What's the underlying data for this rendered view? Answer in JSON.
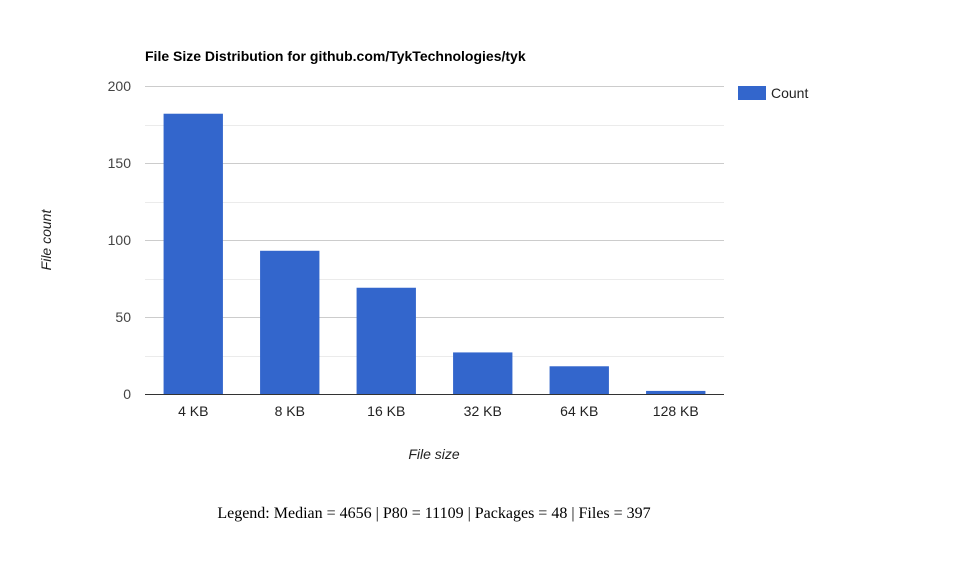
{
  "chart_data": {
    "type": "bar",
    "title": "File Size Distribution for github.com/TykTechnologies/tyk",
    "xlabel": "File size",
    "ylabel": "File count",
    "categories": [
      "4 KB",
      "8 KB",
      "16 KB",
      "32 KB",
      "64 KB",
      "128 KB"
    ],
    "series": [
      {
        "name": "Count",
        "values": [
          182,
          93,
          69,
          27,
          18,
          2
        ],
        "color": "#3366cc"
      }
    ],
    "ylim": [
      0,
      200
    ],
    "yticks": [
      "0",
      "50",
      "100",
      "150",
      "200"
    ],
    "grid": true,
    "legend_position": "right"
  },
  "caption": "Legend: Median = 4656 | P80 = 11109 | Packages = 48 | Files = 397"
}
